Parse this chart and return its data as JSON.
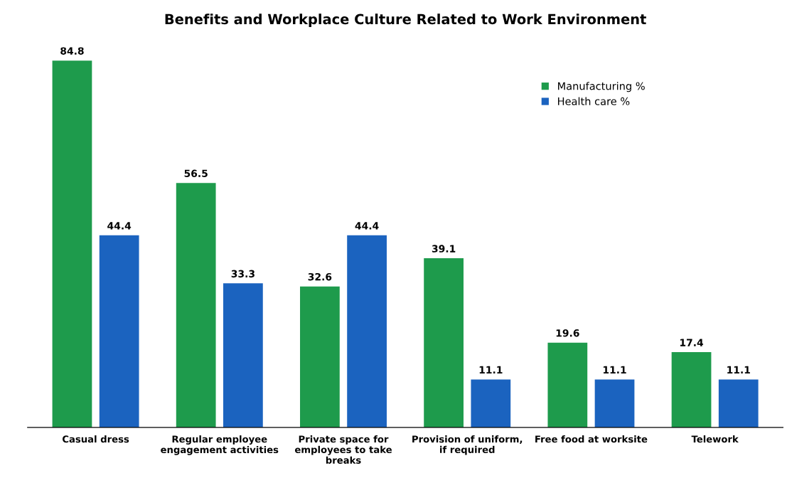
{
  "chart_data": {
    "type": "bar",
    "title": "Benefits and Workplace Culture Related to Work Environment",
    "categories": [
      "Casual dress",
      "Regular employee\nengagement activities",
      "Private space for\nemployees to take\nbreaks",
      "Provision of uniform,\nif required",
      "Free food at worksite",
      "Telework"
    ],
    "series": [
      {
        "name": "Manufacturing %",
        "color": "#1e9b4c",
        "values": [
          84.8,
          56.5,
          32.6,
          39.1,
          19.6,
          17.4
        ]
      },
      {
        "name": "Health care %",
        "color": "#1b63bf",
        "values": [
          44.4,
          33.3,
          44.4,
          11.1,
          11.1,
          11.1
        ]
      }
    ],
    "data_labels": true,
    "legend": "top right",
    "grid": false
  }
}
